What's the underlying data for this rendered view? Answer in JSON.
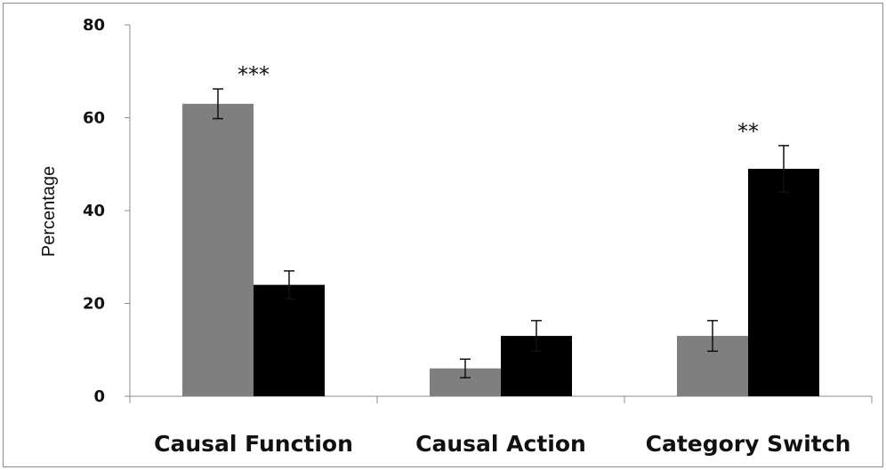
{
  "chart_data": {
    "type": "bar",
    "title": "",
    "xlabel": "",
    "ylabel": "Percentage",
    "ylim": [
      0,
      80
    ],
    "yticks": [
      "0",
      "20",
      "40",
      "60",
      "80"
    ],
    "grid": false,
    "legend": "none",
    "categories": [
      "Causal Function",
      "Causal Action",
      "Category Switch"
    ],
    "series": [
      {
        "color": "#7f7f7f",
        "values": [
          63,
          6,
          13
        ],
        "errors": [
          3.2,
          2,
          3.3
        ]
      },
      {
        "color": "#000000",
        "values": [
          24,
          13,
          49
        ],
        "errors": [
          3,
          3.3,
          5
        ]
      }
    ],
    "annotations": [
      {
        "category": "Causal Function",
        "text": "***"
      },
      {
        "category": "Category Switch",
        "text": "**"
      }
    ]
  }
}
